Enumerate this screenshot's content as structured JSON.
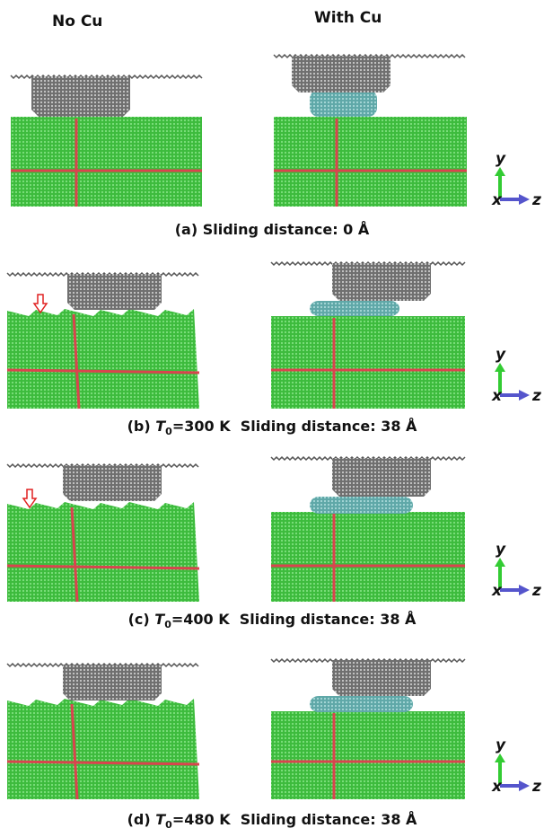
{
  "headers": [
    "No Cu",
    "With Cu"
  ],
  "axes": {
    "y": "y",
    "x": "x",
    "z": "z"
  },
  "captions": [
    {
      "label": "(a)",
      "text": "Sliding distance: 0 Å"
    },
    {
      "label": "(b)",
      "symbol": "T",
      "subscript": "0",
      "text": "=300 K  Sliding distance: 38 Å"
    },
    {
      "label": "(c)",
      "symbol": "T",
      "subscript": "0",
      "text": "=400 K  Sliding distance: 38 Å"
    },
    {
      "label": "(d)",
      "symbol": "T",
      "subscript": "0",
      "text": "=480 K  Sliding distance: 38 Å"
    }
  ]
}
